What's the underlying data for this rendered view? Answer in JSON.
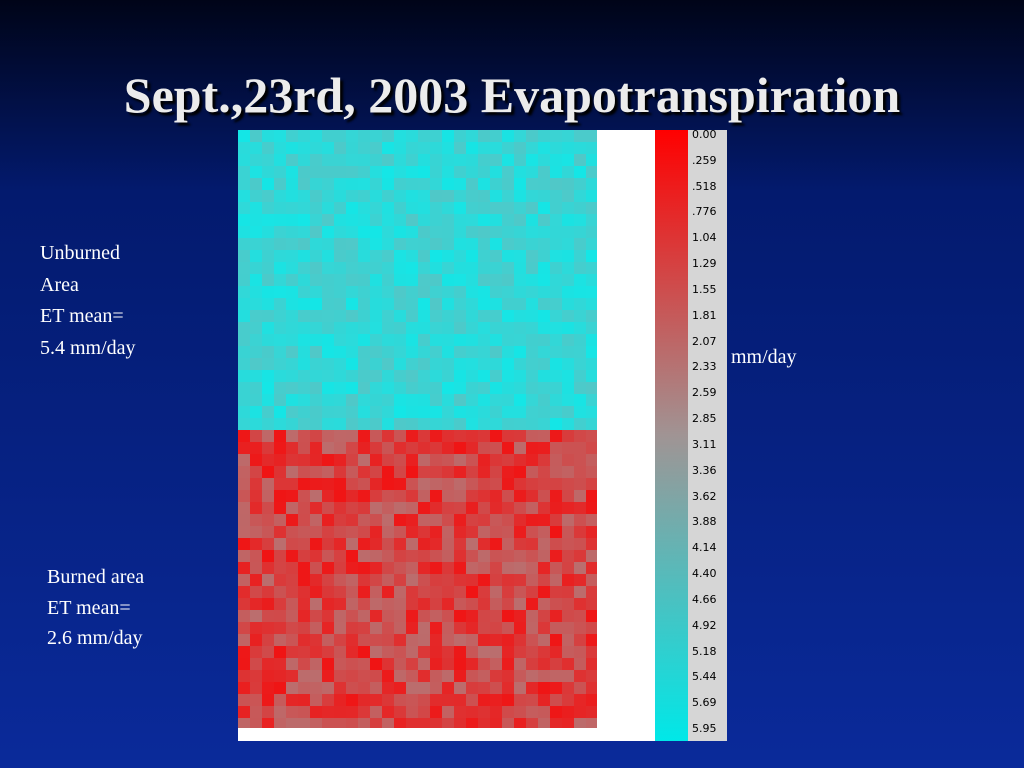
{
  "title": "Sept.,23rd, 2003 Evapotranspiration",
  "annotations": {
    "unburned": [
      "Unburned",
      "Area",
      "ET mean=",
      "5.4 mm/day"
    ],
    "burned": [
      "Burned area",
      "ET mean=",
      "2.6 mm/day"
    ]
  },
  "colorbar": {
    "unit": "mm/day",
    "labels": [
      "0.00",
      ".259",
      ".518",
      ".776",
      "1.04",
      "1.29",
      "1.55",
      "1.81",
      "2.07",
      "2.33",
      "2.59",
      "2.85",
      "3.11",
      "3.36",
      "3.62",
      "3.88",
      "4.14",
      "4.40",
      "4.66",
      "4.92",
      "5.18",
      "5.44",
      "5.69",
      "5.95"
    ]
  }
}
